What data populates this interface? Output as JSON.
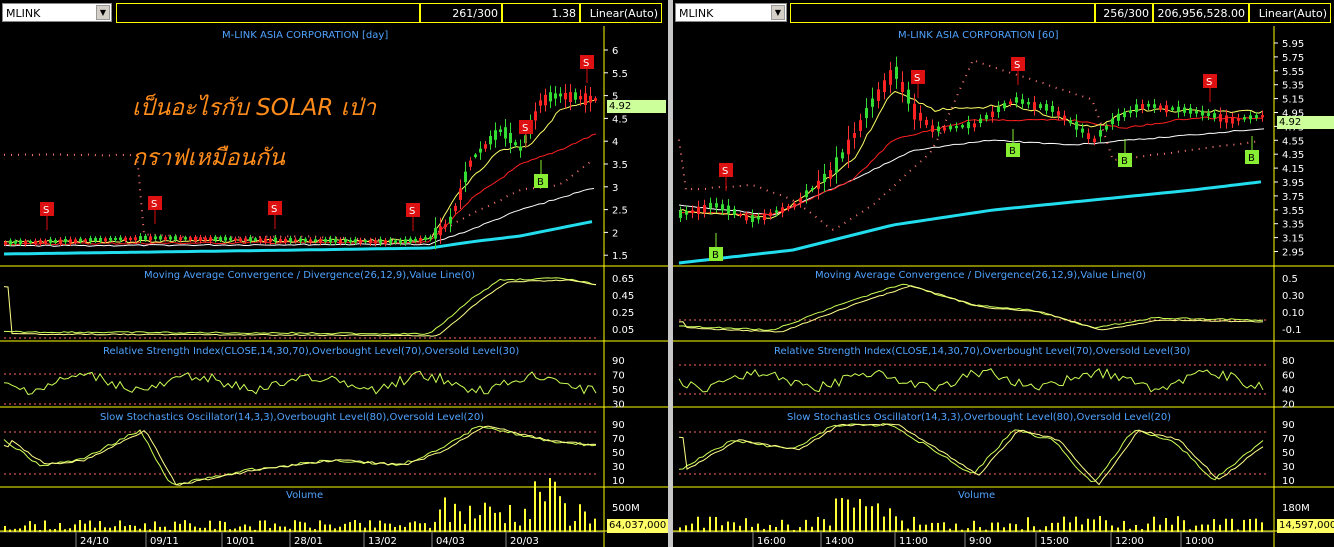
{
  "left": {
    "symbol": "MLINK",
    "counter": "261/300",
    "value": "1.38",
    "scale": "Linear(Auto)",
    "chart_title": "M-LINK ASIA CORPORATION [day]",
    "overlay_text_line1": "เป็นอะไรกับ SOLAR เป่า",
    "overlay_text_line2": "กราฟเหมือนกัน",
    "price_ticks": [
      "6",
      "5.5",
      "5",
      "4.5",
      "4",
      "3.5",
      "3",
      "2.5",
      "2",
      "1.5"
    ],
    "last_price": "4.92",
    "macd_title": "Moving Average Convergence / Divergence(26,12,9),Value Line(0)",
    "macd_ticks": [
      "0.65",
      "0.45",
      "0.25",
      "0.05"
    ],
    "rsi_title": "Relative Strength Index(CLOSE,14,30,70),Overbought Level(70),Oversold Level(30)",
    "rsi_ticks": [
      "90",
      "70",
      "50",
      "30"
    ],
    "stoch_title": "Slow Stochastics Oscillator(14,3,3),Overbought Level(80),Oversold Level(20)",
    "stoch_ticks": [
      "90",
      "70",
      "50",
      "30",
      "10"
    ],
    "volume_title": "Volume",
    "volume_tick": "500M",
    "last_volume": "64,037,000",
    "dates": [
      "24/10",
      "09/11",
      "10/01",
      "28/01",
      "13/02",
      "04/03",
      "20/03"
    ],
    "signals": [
      "S",
      "S",
      "S",
      "S",
      "S",
      "S",
      "B"
    ]
  },
  "right": {
    "symbol": "MLINK",
    "counter": "256/300",
    "value": "206,956,528.00",
    "scale": "Linear(Auto)",
    "chart_title": "M-LINK ASIA CORPORATION [60]",
    "price_ticks": [
      "5.95",
      "5.75",
      "5.55",
      "5.35",
      "5.15",
      "4.95",
      "4.75",
      "4.55",
      "4.35",
      "4.15",
      "3.95",
      "3.75",
      "3.55",
      "3.35",
      "3.15",
      "2.95"
    ],
    "last_price": "4.92",
    "macd_title": "Moving Average Convergence / Divergence(26,12,9),Value Line(0)",
    "macd_ticks": [
      "0.5",
      "0.30",
      "0.10",
      "-0.1"
    ],
    "rsi_title": "Relative Strength Index(CLOSE,14,30,70),Overbought Level(70),Oversold Level(30)",
    "rsi_ticks": [
      "80",
      "60",
      "40",
      "20"
    ],
    "stoch_title": "Slow Stochastics Oscillator(14,3,3),Overbought Level(80),Oversold Level(20)",
    "stoch_ticks": [
      "90",
      "70",
      "50",
      "30",
      "10"
    ],
    "volume_title": "Volume",
    "volume_tick": "180M",
    "last_volume": "14,597,000",
    "times": [
      "16:00",
      "14:00",
      "11:00",
      "9:00",
      "15:00",
      "12:00",
      "10:00"
    ],
    "signals": [
      "S",
      "S",
      "S",
      "S",
      "B",
      "B",
      "B",
      "B"
    ]
  },
  "colors": {
    "background": "#000000",
    "candle_up": "#33dd33",
    "candle_down": "#ff2222",
    "ma_long": "#22ddee",
    "signal_sell": "#dd1111",
    "signal_buy": "#88ee33",
    "panel_border": "#ffff00",
    "title_text": "#4fa3ff",
    "overlay_text": "#ff8c1a"
  }
}
